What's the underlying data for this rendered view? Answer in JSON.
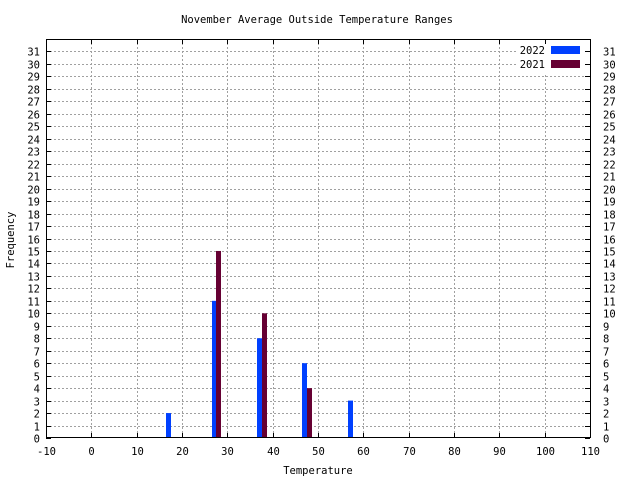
{
  "chart_data": {
    "type": "bar",
    "title": "November Average Outside Temperature Ranges",
    "xlabel": "Temperature",
    "ylabel": "Frequency",
    "xlim": [
      -10,
      110
    ],
    "ylim": [
      0,
      32
    ],
    "x_ticks": [
      -10,
      0,
      10,
      20,
      30,
      40,
      50,
      60,
      70,
      80,
      90,
      100,
      110
    ],
    "y_ticks": [
      0,
      1,
      2,
      3,
      4,
      5,
      6,
      7,
      8,
      9,
      10,
      11,
      12,
      13,
      14,
      15,
      16,
      17,
      18,
      19,
      20,
      21,
      22,
      23,
      24,
      25,
      26,
      27,
      28,
      29,
      30,
      31
    ],
    "grid": true,
    "legend_position": "top-right",
    "series": [
      {
        "name": "2022",
        "color": "#0040ff",
        "points": [
          {
            "x": 17,
            "y": 2
          },
          {
            "x": 27,
            "y": 11
          },
          {
            "x": 37,
            "y": 8
          },
          {
            "x": 47,
            "y": 6
          },
          {
            "x": 57,
            "y": 3
          }
        ]
      },
      {
        "name": "2021",
        "color": "#660033",
        "points": [
          {
            "x": 28,
            "y": 15
          },
          {
            "x": 38,
            "y": 10
          },
          {
            "x": 48,
            "y": 4
          }
        ]
      }
    ]
  }
}
